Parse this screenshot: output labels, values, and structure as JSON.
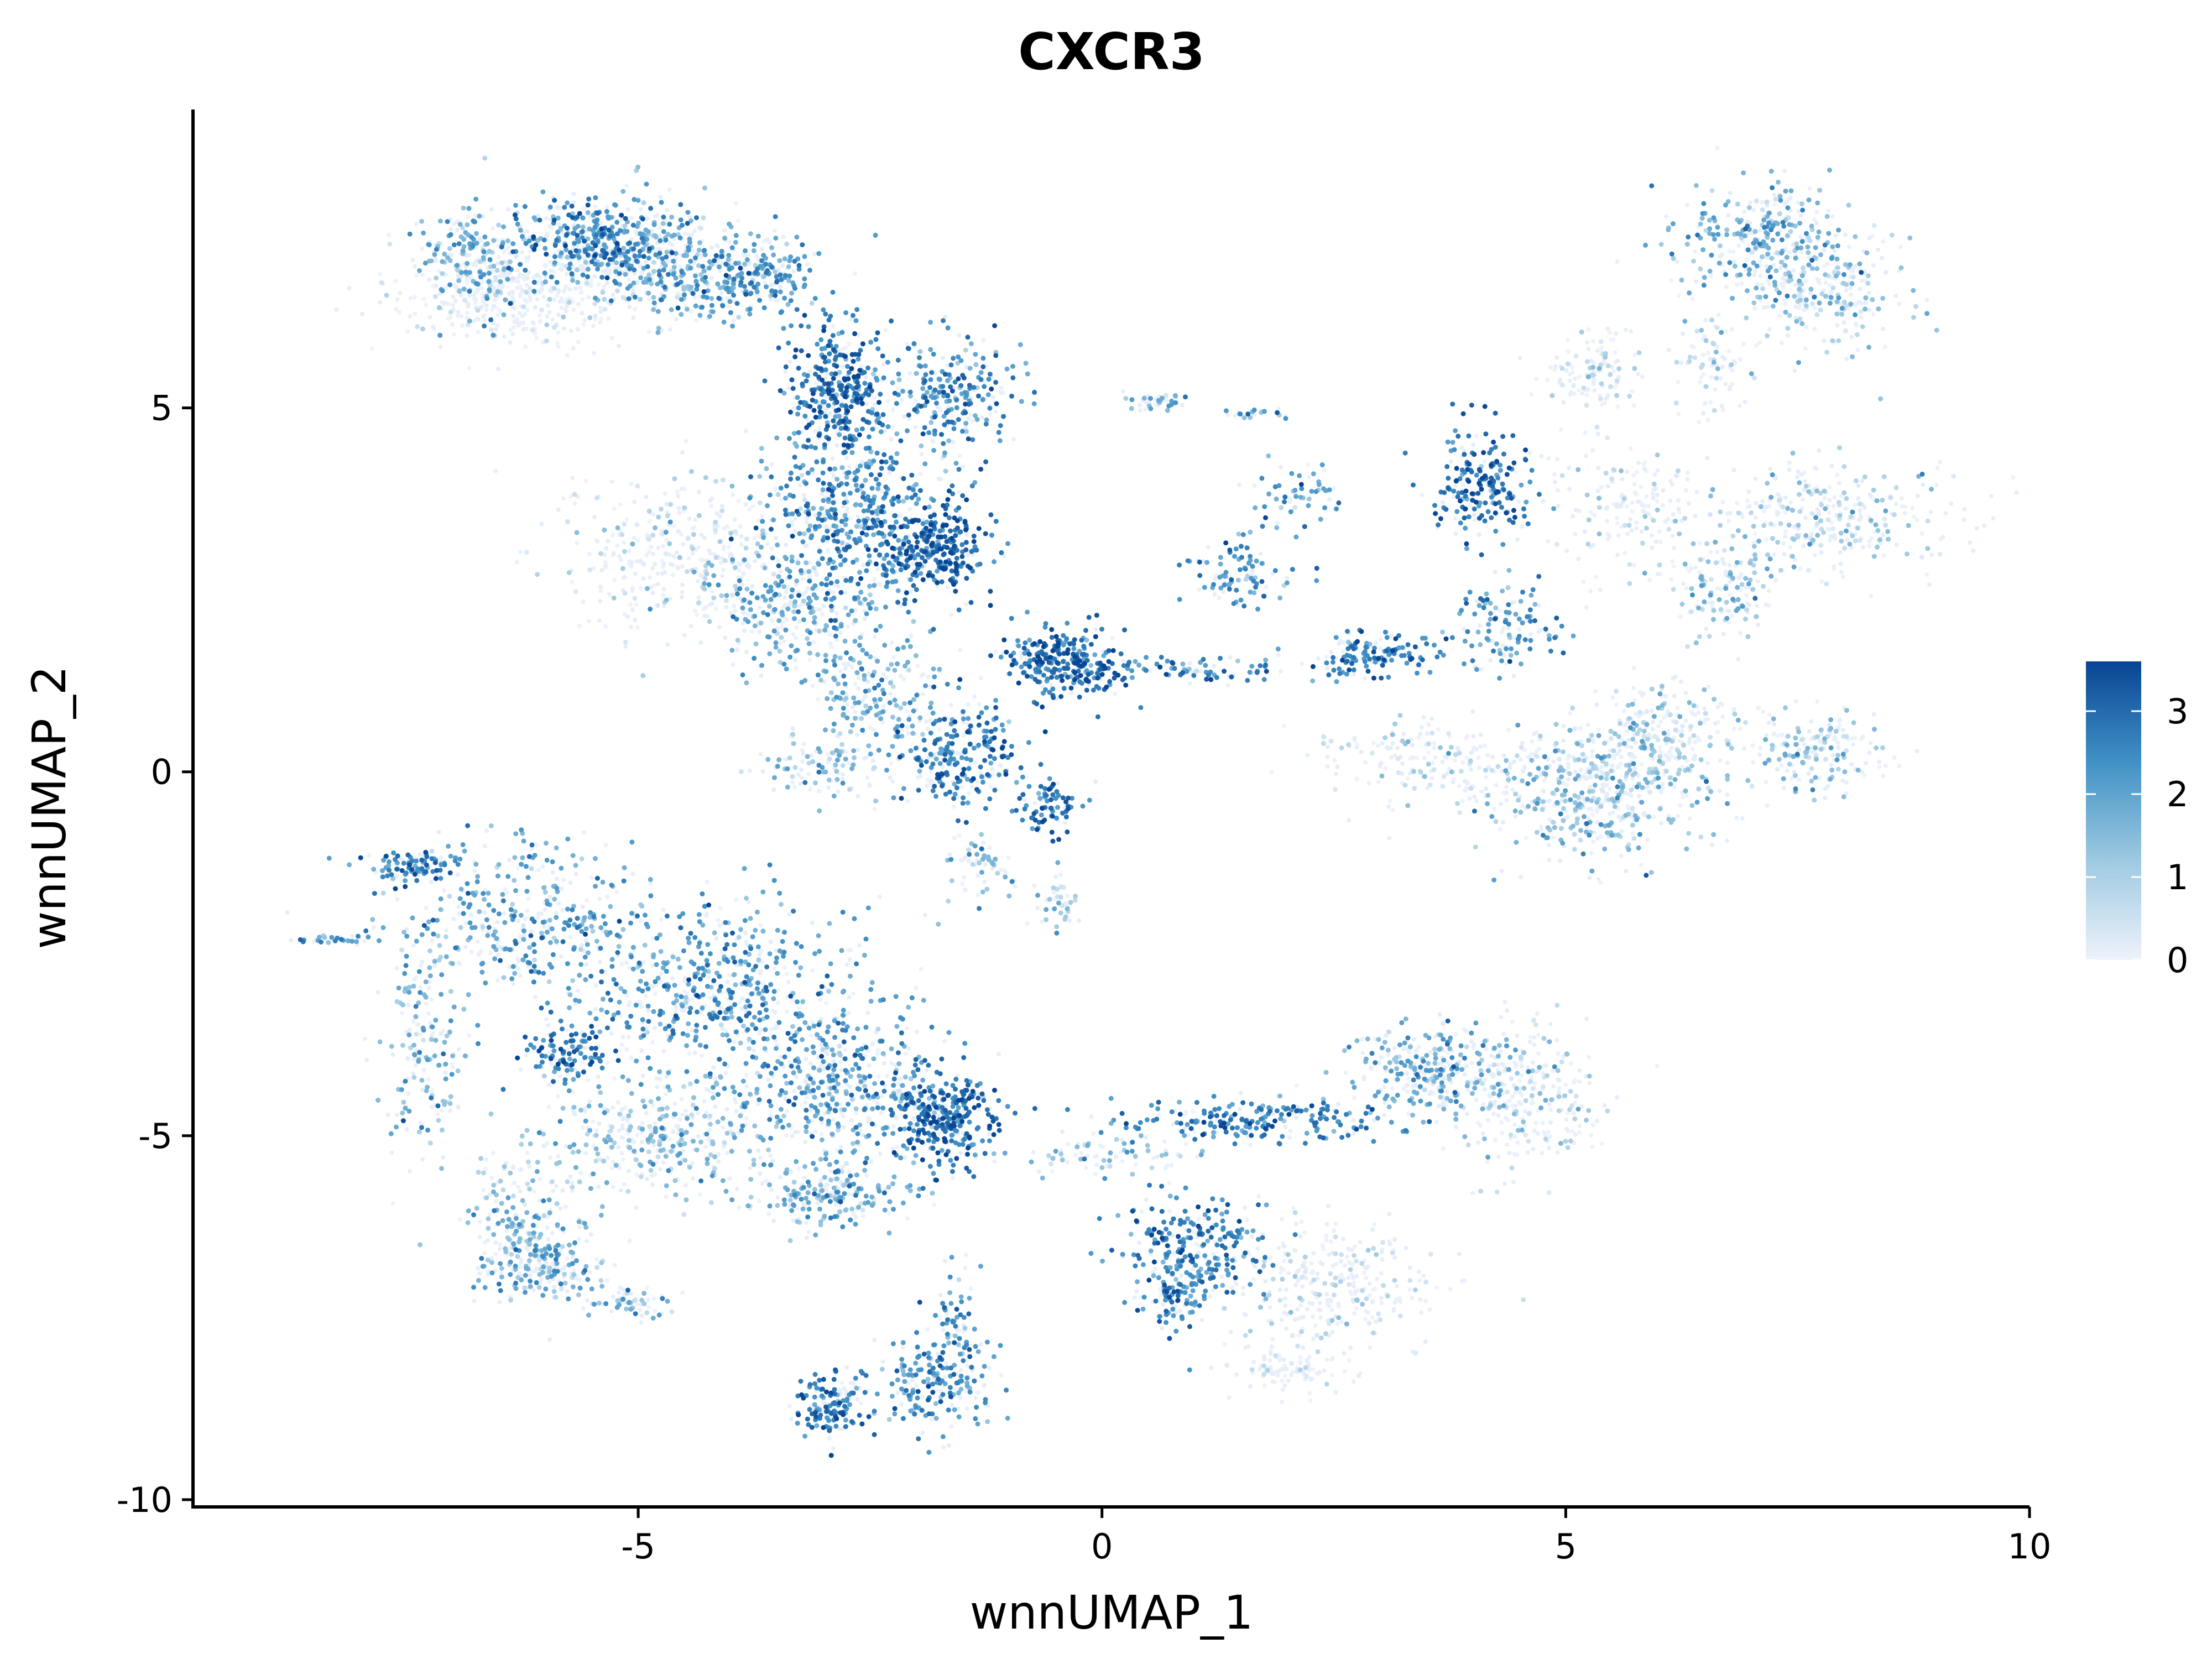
{
  "chart_data": {
    "type": "scatter",
    "title": "CXCR3",
    "xlabel": "wnnUMAP_1",
    "ylabel": "wnnUMAP_2",
    "xlim": [
      -9.8,
      10
    ],
    "ylim": [
      -10.1,
      9.1
    ],
    "x_ticks": [
      -5,
      0,
      5,
      10
    ],
    "x_tick_labels": [
      "-5",
      "0",
      "5",
      "10"
    ],
    "y_ticks": [
      -10,
      -5,
      0,
      5
    ],
    "y_tick_labels": [
      "-10",
      "-5",
      "0",
      "5"
    ],
    "grid": false,
    "legend": {
      "placement": "right",
      "min": 0,
      "max": 3.6,
      "ticks": [
        0,
        1,
        2,
        3
      ],
      "tick_labels": [
        "0",
        "1",
        "2",
        "3"
      ],
      "colors": [
        "#eef2fb",
        "#9ecae1",
        "#4292c6",
        "#084594"
      ]
    },
    "density_clusters": [
      {
        "cx": -6.3,
        "cy": 6.6,
        "rx": 0.9,
        "ry": 0.5,
        "n": 420,
        "mean": 0.2
      },
      {
        "cx": -5.4,
        "cy": 7.3,
        "rx": 0.6,
        "ry": 0.4,
        "n": 380,
        "mean": 2.4
      },
      {
        "cx": -6.8,
        "cy": 7.0,
        "rx": 0.4,
        "ry": 0.5,
        "n": 200,
        "mean": 1.8
      },
      {
        "cx": -4.6,
        "cy": 6.9,
        "rx": 0.6,
        "ry": 0.5,
        "n": 320,
        "mean": 1.8
      },
      {
        "cx": -3.8,
        "cy": 6.8,
        "rx": 0.5,
        "ry": 0.35,
        "n": 220,
        "mean": 2.2
      },
      {
        "cx": -2.9,
        "cy": 5.3,
        "rx": 0.35,
        "ry": 0.6,
        "n": 320,
        "mean": 2.8
      },
      {
        "cx": -1.6,
        "cy": 5.2,
        "rx": 0.5,
        "ry": 0.5,
        "n": 260,
        "mean": 2.4
      },
      {
        "cx": -2.7,
        "cy": 3.6,
        "rx": 0.6,
        "ry": 0.9,
        "n": 500,
        "mean": 2.4
      },
      {
        "cx": -1.8,
        "cy": 3.1,
        "rx": 0.4,
        "ry": 0.4,
        "n": 300,
        "mean": 3.0
      },
      {
        "cx": -4.6,
        "cy": 3.0,
        "rx": 0.8,
        "ry": 0.7,
        "n": 350,
        "mean": 0.6
      },
      {
        "cx": -3.4,
        "cy": 2.3,
        "rx": 0.6,
        "ry": 0.6,
        "n": 280,
        "mean": 1.9
      },
      {
        "cx": -2.5,
        "cy": 1.2,
        "rx": 0.5,
        "ry": 0.6,
        "n": 200,
        "mean": 1.9
      },
      {
        "cx": -1.5,
        "cy": 0.3,
        "rx": 0.4,
        "ry": 0.5,
        "n": 260,
        "mean": 2.6
      },
      {
        "cx": -0.6,
        "cy": -0.5,
        "rx": 0.25,
        "ry": 0.25,
        "n": 80,
        "mean": 2.8
      },
      {
        "cx": -1.3,
        "cy": -1.2,
        "rx": 0.25,
        "ry": 0.3,
        "n": 60,
        "mean": 1.6
      },
      {
        "cx": -2.9,
        "cy": 0.1,
        "rx": 0.5,
        "ry": 0.3,
        "n": 120,
        "mean": 1.5
      },
      {
        "cx": -0.4,
        "cy": 1.5,
        "rx": 0.4,
        "ry": 0.35,
        "n": 280,
        "mean": 2.9
      },
      {
        "cx": 0.9,
        "cy": 1.4,
        "rx": 0.8,
        "ry": 0.12,
        "n": 90,
        "mean": 2.5
      },
      {
        "cx": 1.5,
        "cy": 2.7,
        "rx": 0.4,
        "ry": 0.3,
        "n": 90,
        "mean": 2.3
      },
      {
        "cx": 2.1,
        "cy": 3.8,
        "rx": 0.35,
        "ry": 0.35,
        "n": 60,
        "mean": 2.2
      },
      {
        "cx": 0.6,
        "cy": 5.1,
        "rx": 0.2,
        "ry": 0.1,
        "n": 40,
        "mean": 1.5
      },
      {
        "cx": 1.6,
        "cy": 4.9,
        "rx": 0.25,
        "ry": 0.05,
        "n": 20,
        "mean": 1.8
      },
      {
        "cx": 2.9,
        "cy": 1.6,
        "rx": 0.5,
        "ry": 0.2,
        "n": 140,
        "mean": 2.6
      },
      {
        "cx": 4.1,
        "cy": 4.0,
        "rx": 0.35,
        "ry": 0.5,
        "n": 200,
        "mean": 2.8
      },
      {
        "cx": 4.4,
        "cy": 2.0,
        "rx": 0.35,
        "ry": 0.4,
        "n": 120,
        "mean": 2.3
      },
      {
        "cx": 5.3,
        "cy": 5.5,
        "rx": 0.4,
        "ry": 0.4,
        "n": 120,
        "mean": 0.5
      },
      {
        "cx": 5.6,
        "cy": 3.6,
        "rx": 0.5,
        "ry": 0.6,
        "n": 160,
        "mean": 0.4
      },
      {
        "cx": 7.2,
        "cy": 7.3,
        "rx": 0.6,
        "ry": 0.5,
        "n": 320,
        "mean": 1.7
      },
      {
        "cx": 7.9,
        "cy": 6.5,
        "rx": 0.5,
        "ry": 0.5,
        "n": 220,
        "mean": 1.2
      },
      {
        "cx": 6.6,
        "cy": 5.6,
        "rx": 0.3,
        "ry": 0.5,
        "n": 80,
        "mean": 0.7
      },
      {
        "cx": 7.8,
        "cy": 3.5,
        "rx": 0.9,
        "ry": 0.5,
        "n": 320,
        "mean": 1.0
      },
      {
        "cx": 6.7,
        "cy": 2.5,
        "rx": 0.4,
        "ry": 0.4,
        "n": 140,
        "mean": 1.3
      },
      {
        "cx": 5.3,
        "cy": -0.3,
        "rx": 0.8,
        "ry": 0.6,
        "n": 480,
        "mean": 1.4
      },
      {
        "cx": 6.0,
        "cy": 0.5,
        "rx": 0.6,
        "ry": 0.5,
        "n": 250,
        "mean": 0.9
      },
      {
        "cx": 3.5,
        "cy": 0.2,
        "rx": 0.8,
        "ry": 0.4,
        "n": 180,
        "mean": 0.4
      },
      {
        "cx": 7.7,
        "cy": 0.3,
        "rx": 0.5,
        "ry": 0.4,
        "n": 180,
        "mean": 1.2
      },
      {
        "cx": -7.4,
        "cy": -1.3,
        "rx": 0.35,
        "ry": 0.15,
        "n": 100,
        "mean": 2.6
      },
      {
        "cx": -8.3,
        "cy": -2.3,
        "rx": 0.3,
        "ry": 0.06,
        "n": 30,
        "mean": 2.2
      },
      {
        "cx": -6.2,
        "cy": -2.0,
        "rx": 0.9,
        "ry": 0.7,
        "n": 380,
        "mean": 2.0
      },
      {
        "cx": -7.3,
        "cy": -3.8,
        "rx": 0.3,
        "ry": 1.0,
        "n": 180,
        "mean": 1.8
      },
      {
        "cx": -5.8,
        "cy": -3.9,
        "rx": 0.3,
        "ry": 0.3,
        "n": 120,
        "mean": 2.7
      },
      {
        "cx": -4.2,
        "cy": -3.0,
        "rx": 1.0,
        "ry": 0.8,
        "n": 600,
        "mean": 2.2
      },
      {
        "cx": -4.8,
        "cy": -5.0,
        "rx": 0.8,
        "ry": 0.5,
        "n": 350,
        "mean": 1.4
      },
      {
        "cx": -2.8,
        "cy": -4.3,
        "rx": 0.8,
        "ry": 0.7,
        "n": 450,
        "mean": 2.1
      },
      {
        "cx": -1.7,
        "cy": -4.8,
        "rx": 0.4,
        "ry": 0.4,
        "n": 300,
        "mean": 2.9
      },
      {
        "cx": -3.0,
        "cy": -5.8,
        "rx": 0.6,
        "ry": 0.3,
        "n": 220,
        "mean": 1.8
      },
      {
        "cx": -6.2,
        "cy": -6.1,
        "rx": 0.4,
        "ry": 0.8,
        "n": 220,
        "mean": 1.5
      },
      {
        "cx": -6.0,
        "cy": -6.8,
        "rx": 0.4,
        "ry": 0.25,
        "n": 160,
        "mean": 1.6
      },
      {
        "cx": -5.1,
        "cy": -7.3,
        "rx": 0.3,
        "ry": 0.15,
        "n": 60,
        "mean": 1.6
      },
      {
        "cx": -2.9,
        "cy": -8.7,
        "rx": 0.3,
        "ry": 0.3,
        "n": 150,
        "mean": 2.7
      },
      {
        "cx": -1.8,
        "cy": -8.4,
        "rx": 0.4,
        "ry": 0.5,
        "n": 220,
        "mean": 2.2
      },
      {
        "cx": -1.6,
        "cy": -7.4,
        "rx": 0.15,
        "ry": 0.5,
        "n": 50,
        "mean": 2.2
      },
      {
        "cx": -0.5,
        "cy": -1.8,
        "rx": 0.15,
        "ry": 0.3,
        "n": 40,
        "mean": 1.2
      },
      {
        "cx": 1.7,
        "cy": -4.8,
        "rx": 1.0,
        "ry": 0.2,
        "n": 220,
        "mean": 2.6
      },
      {
        "cx": 3.6,
        "cy": -4.1,
        "rx": 0.6,
        "ry": 0.4,
        "n": 300,
        "mean": 1.8
      },
      {
        "cx": 4.6,
        "cy": -4.5,
        "rx": 0.5,
        "ry": 0.7,
        "n": 250,
        "mean": 0.8
      },
      {
        "cx": 1.0,
        "cy": -6.5,
        "rx": 0.5,
        "ry": 0.5,
        "n": 250,
        "mean": 2.6
      },
      {
        "cx": 0.8,
        "cy": -7.2,
        "rx": 0.3,
        "ry": 0.3,
        "n": 90,
        "mean": 2.4
      },
      {
        "cx": 2.5,
        "cy": -7.1,
        "rx": 0.7,
        "ry": 0.6,
        "n": 300,
        "mean": 0.5
      },
      {
        "cx": 2.0,
        "cy": -8.2,
        "rx": 0.4,
        "ry": 0.2,
        "n": 90,
        "mean": 0.3
      },
      {
        "cx": 0.0,
        "cy": -5.3,
        "rx": 0.6,
        "ry": 0.2,
        "n": 80,
        "mean": 1.5
      }
    ]
  }
}
